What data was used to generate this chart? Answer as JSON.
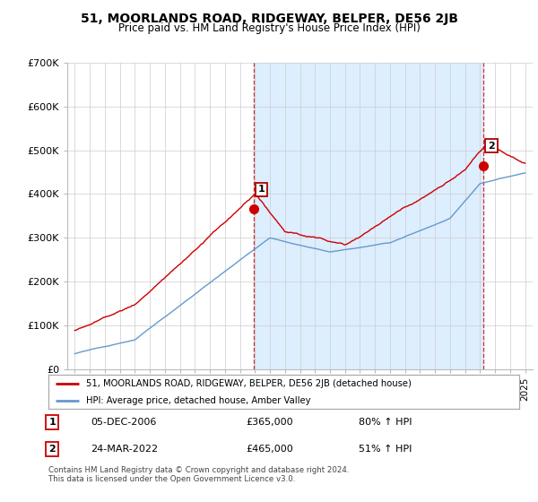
{
  "title": "51, MOORLANDS ROAD, RIDGEWAY, BELPER, DE56 2JB",
  "subtitle": "Price paid vs. HM Land Registry's House Price Index (HPI)",
  "ylim": [
    0,
    700000
  ],
  "yticks": [
    0,
    100000,
    200000,
    300000,
    400000,
    500000,
    600000,
    700000
  ],
  "ytick_labels": [
    "£0",
    "£100K",
    "£200K",
    "£300K",
    "£400K",
    "£500K",
    "£600K",
    "£700K"
  ],
  "sale1_date_num": 2006.92,
  "sale1_price": 365000,
  "sale1_label": "1",
  "sale2_date_num": 2022.23,
  "sale2_price": 465000,
  "sale2_label": "2",
  "legend_line1": "51, MOORLANDS ROAD, RIDGEWAY, BELPER, DE56 2JB (detached house)",
  "legend_line2": "HPI: Average price, detached house, Amber Valley",
  "annotation1_date": "05-DEC-2006",
  "annotation1_price": "£365,000",
  "annotation1_hpi": "80% ↑ HPI",
  "annotation2_date": "24-MAR-2022",
  "annotation2_price": "£465,000",
  "annotation2_hpi": "51% ↑ HPI",
  "footer": "Contains HM Land Registry data © Crown copyright and database right 2024.\nThis data is licensed under the Open Government Licence v3.0.",
  "line_color_red": "#cc0000",
  "line_color_blue": "#6699cc",
  "shade_color": "#ddeeff",
  "background_color": "#ffffff",
  "grid_color": "#cccccc",
  "vline_color": "#cc0000"
}
